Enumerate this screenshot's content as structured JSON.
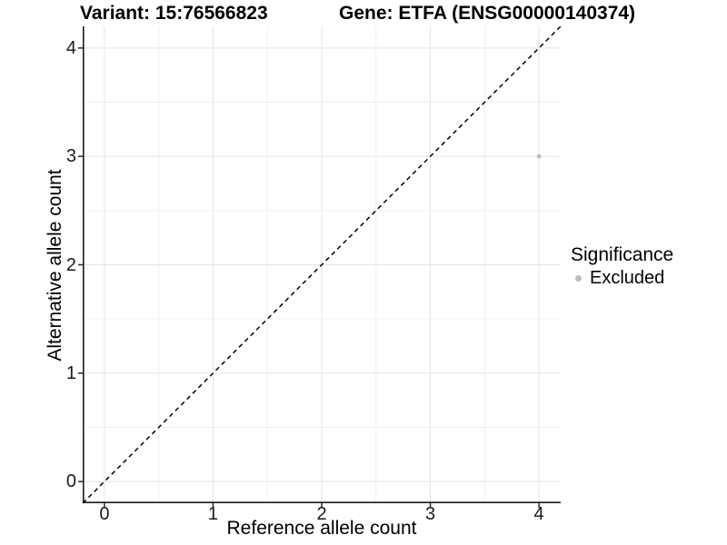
{
  "titles": {
    "variant": "Variant: 15:76566823",
    "gene": "Gene: ETFA (ENSG00000140374)"
  },
  "axes": {
    "x": {
      "label": "Reference allele count"
    },
    "y": {
      "label": "Alternative allele count"
    }
  },
  "legend": {
    "title": "Significance",
    "items": [
      {
        "label": "Excluded",
        "color": "#bdbdbd"
      }
    ]
  },
  "colors": {
    "background": "#ffffff",
    "grid_major": "#e3e3e3",
    "grid_minor": "#f0f0f0",
    "axis_line": "#1a1a1a",
    "tick_mark": "#333333",
    "tick_text": "#1a1a1a",
    "point": "#bdbdbd",
    "reference_line": "#000000"
  },
  "chart_data": {
    "type": "scatter",
    "title": "Variant: 15:76566823   Gene: ETFA (ENSG00000140374)",
    "xlabel": "Reference allele count",
    "ylabel": "Alternative allele count",
    "xlim": [
      -0.2,
      4.2
    ],
    "ylim": [
      -0.2,
      4.2
    ],
    "x_ticks": [
      0,
      1,
      2,
      3,
      4
    ],
    "y_ticks": [
      0,
      1,
      2,
      3,
      4
    ],
    "x_minor": [
      0.5,
      1.5,
      2.5,
      3.5
    ],
    "y_minor": [
      0.5,
      1.5,
      2.5,
      3.5
    ],
    "grid": true,
    "legend_position": "right",
    "series": [
      {
        "name": "Excluded",
        "color": "#bdbdbd",
        "points": [
          [
            4,
            3
          ]
        ],
        "point_radius": 2.4
      }
    ],
    "reference_line": {
      "slope": 1,
      "intercept": 0,
      "style": "dashed",
      "color": "#000000"
    }
  }
}
